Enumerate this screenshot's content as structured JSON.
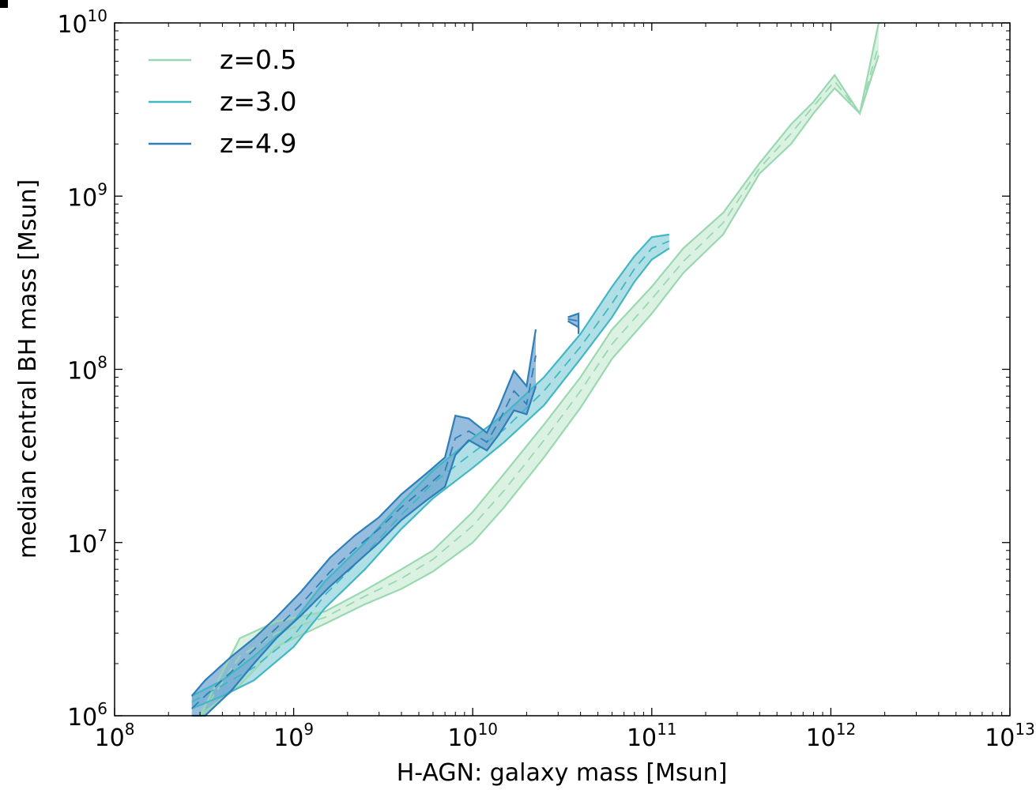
{
  "chart_data": {
    "type": "line",
    "xlabel": "H-AGN: galaxy mass [Msun]",
    "ylabel": "median central BH mass [Msun]",
    "xscale": "log",
    "yscale": "log",
    "xlim": [
      100000000.0,
      10000000000000.0
    ],
    "ylim": [
      1000000.0,
      10000000000.0
    ],
    "xticks": [
      {
        "base": "10",
        "exp": "8",
        "value": 100000000.0
      },
      {
        "base": "10",
        "exp": "9",
        "value": 1000000000.0
      },
      {
        "base": "10",
        "exp": "10",
        "value": 10000000000.0
      },
      {
        "base": "10",
        "exp": "11",
        "value": 100000000000.0
      },
      {
        "base": "10",
        "exp": "12",
        "value": 1000000000000.0
      },
      {
        "base": "10",
        "exp": "13",
        "value": 10000000000000.0
      }
    ],
    "yticks": [
      {
        "base": "10",
        "exp": "6",
        "value": 1000000.0
      },
      {
        "base": "10",
        "exp": "7",
        "value": 10000000.0
      },
      {
        "base": "10",
        "exp": "8",
        "value": 100000000.0
      },
      {
        "base": "10",
        "exp": "9",
        "value": 1000000000.0
      },
      {
        "base": "10",
        "exp": "10",
        "value": 10000000000.0
      }
    ],
    "grid": false,
    "legend_position": "top-left",
    "series": [
      {
        "name": "z=0.5",
        "color": "#99d8b0",
        "fill": "#ccecd6",
        "x": [
          300000000.0,
          500000000.0,
          800000000.0,
          1500000000.0,
          2500000000.0,
          4000000000.0,
          6000000000.0,
          10000000000.0,
          15000000000.0,
          25000000000.0,
          40000000000.0,
          60000000000.0,
          100000000000.0,
          150000000000.0,
          250000000000.0,
          400000000000.0,
          600000000000.0,
          800000000000.0,
          1050000000000.0,
          1450000000000.0,
          1850000000000.0
        ],
        "upper": [
          1000000.0,
          2800000.0,
          3500000.0,
          4000000.0,
          5300000.0,
          7000000.0,
          9000000.0,
          15000000.0,
          25000000.0,
          48000000.0,
          90000000.0,
          170000000.0,
          300000000.0,
          500000000.0,
          800000000.0,
          1550000000.0,
          2600000000.0,
          3500000000.0,
          5000000000.0,
          3000000000.0,
          10000000000.0
        ],
        "median": [
          1000000.0,
          2200000.0,
          3000000.0,
          3700000.0,
          4900000.0,
          6200000.0,
          8000000.0,
          12500000.0,
          20000000.0,
          39000000.0,
          75000000.0,
          140000000.0,
          255000000.0,
          420000000.0,
          700000000.0,
          1450000000.0,
          2300000000.0,
          3300000000.0,
          4600000000.0,
          3000000000.0,
          7500000000.0
        ],
        "lower": [
          1000000.0,
          1500000.0,
          2500000.0,
          3400000.0,
          4400000.0,
          5400000.0,
          6800000.0,
          10000000.0,
          16000000.0,
          31000000.0,
          60000000.0,
          115000000.0,
          210000000.0,
          360000000.0,
          600000000.0,
          1350000000.0,
          2000000000.0,
          3000000000.0,
          4200000000.0,
          3000000000.0,
          6500000000.0
        ]
      },
      {
        "name": "z=3.0",
        "color": "#41b6c4",
        "fill": "#8fd1da",
        "x": [
          270000000.0,
          400000000.0,
          600000000.0,
          1000000000.0,
          1500000000.0,
          2500000000.0,
          4000000000.0,
          6000000000.0,
          10000000000.0,
          15000000000.0,
          25000000000.0,
          40000000000.0,
          60000000000.0,
          80000000000.0,
          100000000000.0,
          125000000000.0
        ],
        "upper": [
          1300000.0,
          1600000.0,
          2200000.0,
          3500000.0,
          6000000.0,
          10000000.0,
          17000000.0,
          26000000.0,
          40000000.0,
          55000000.0,
          90000000.0,
          160000000.0,
          300000000.0,
          450000000.0,
          580000000.0,
          600000000.0
        ],
        "median": [
          1200000.0,
          1500000.0,
          1900000.0,
          2900000.0,
          5000000.0,
          8500000.0,
          14500000.0,
          22000000.0,
          33000000.0,
          45000000.0,
          75000000.0,
          135000000.0,
          240000000.0,
          380000000.0,
          500000000.0,
          550000000.0
        ],
        "lower": [
          1100000.0,
          1300000.0,
          1600000.0,
          2500000.0,
          4200000.0,
          7000000.0,
          12000000.0,
          18000000.0,
          27000000.0,
          38000000.0,
          62000000.0,
          115000000.0,
          200000000.0,
          320000000.0,
          430000000.0,
          500000000.0
        ]
      },
      {
        "name": "z=4.9",
        "color": "#2c7fb8",
        "fill": "#6a9fd0",
        "x": [
          270000000.0,
          320000000.0,
          450000000.0,
          600000000.0,
          800000000.0,
          1100000000.0,
          1600000000.0,
          2200000000.0,
          3000000000.0,
          4000000000.0,
          5500000000.0,
          7000000000.0,
          8000000000.0,
          9500000000.0,
          12000000000.0,
          14000000000.0,
          17000000000.0,
          20000000000.0,
          22500000000.0
        ],
        "upper": [
          1300000.0,
          1600000.0,
          2200000.0,
          2800000.0,
          3700000.0,
          5200000.0,
          8200000.0,
          11000000.0,
          14000000.0,
          19000000.0,
          25000000.0,
          31000000.0,
          54000000.0,
          52000000.0,
          43000000.0,
          60000000.0,
          98000000.0,
          80000000.0,
          170000000.0
        ],
        "median": [
          1100000.0,
          1300000.0,
          1800000.0,
          2400000.0,
          3200000.0,
          4400000.0,
          6800000.0,
          9200000.0,
          12000000.0,
          16000000.0,
          21000000.0,
          26000000.0,
          40000000.0,
          44000000.0,
          38000000.0,
          50000000.0,
          75000000.0,
          63000000.0,
          120000000.0
        ],
        "lower": [
          1000000.0,
          1000000.0,
          1400000.0,
          2000000.0,
          2800000.0,
          3800000.0,
          5600000.0,
          7500000.0,
          10000000.0,
          13500000.0,
          17500000.0,
          21000000.0,
          32000000.0,
          39000000.0,
          34000000.0,
          42000000.0,
          58000000.0,
          55000000.0,
          80000000.0
        ]
      },
      {
        "name": "",
        "color": "#2c7fb8",
        "fill": "#6a9fd0",
        "x": [
          34000000000.0,
          39000000000.0,
          39000000000.0
        ],
        "upper": [
          200000000.0,
          210000000.0,
          165000000.0
        ],
        "median": [
          195000000.0,
          190000000.0,
          170000000.0
        ],
        "lower": [
          190000000.0,
          175000000.0,
          160000000.0
        ]
      }
    ]
  }
}
